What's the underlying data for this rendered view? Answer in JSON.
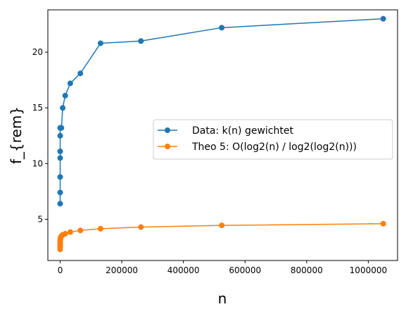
{
  "chart_data": {
    "type": "line",
    "xlabel": "n",
    "ylabel": "f_{rem}",
    "xlim": [
      -40000,
      1095000
    ],
    "ylim": [
      1.3,
      23.8
    ],
    "grid": false,
    "legend_position": "center-right",
    "x_ticks": [
      0,
      200000,
      400000,
      600000,
      800000,
      1000000
    ],
    "x_tick_labels": [
      "0",
      "200000",
      "400000",
      "600000",
      "800000",
      "1000000"
    ],
    "y_ticks": [
      5,
      10,
      15,
      20
    ],
    "y_tick_labels": [
      "5",
      "10",
      "15",
      "20"
    ],
    "x": [
      2,
      4,
      8,
      16,
      32,
      64,
      128,
      256,
      512,
      1024,
      2048,
      4096,
      8192,
      16384,
      32768,
      65536,
      131072,
      262144,
      524288,
      1048576
    ],
    "series": [
      {
        "name": "Data: k(n) gewichtet",
        "color": "#1f77b4",
        "values": [
          6.4,
          7.4,
          8.8,
          10.5,
          11.1,
          12.5,
          13.2,
          13.2,
          13.2,
          13.2,
          13.2,
          13.2,
          15.0,
          16.1,
          17.2,
          18.1,
          20.8,
          21.0,
          22.2,
          23.0
        ]
      },
      {
        "name": "Theo 5: O(log2(n) / log2(log2(n)))",
        "color": "#ff7f0e",
        "values": [
          2.3,
          2.5,
          2.6,
          2.7,
          2.8,
          2.9,
          3.0,
          3.1,
          3.2,
          3.3,
          3.4,
          3.5,
          3.6,
          3.7,
          3.85,
          4.0,
          4.15,
          4.3,
          4.45,
          4.6
        ]
      }
    ]
  }
}
